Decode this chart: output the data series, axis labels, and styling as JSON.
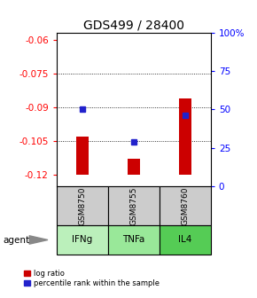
{
  "title": "GDS499 / 28400",
  "categories": [
    "IFNg",
    "TNFa",
    "IL4"
  ],
  "sample_ids": [
    "GSM8750",
    "GSM8755",
    "GSM8760"
  ],
  "log_ratios": [
    -0.103,
    -0.113,
    -0.086
  ],
  "percentile_ranks": [
    50.0,
    29.0,
    46.0
  ],
  "ylim_left": [
    -0.125,
    -0.057
  ],
  "ylim_right": [
    0,
    100
  ],
  "yticks_left": [
    -0.12,
    -0.105,
    -0.09,
    -0.075,
    -0.06
  ],
  "ytick_labels_left": [
    "-0.12",
    "-0.105",
    "-0.09",
    "-0.075",
    "-0.06"
  ],
  "yticks_right": [
    0,
    25,
    50,
    75,
    100
  ],
  "ytick_labels_right": [
    "0",
    "25",
    "50",
    "75",
    "100%"
  ],
  "bar_bottom": -0.12,
  "bar_color": "#cc0000",
  "dot_color": "#2222cc",
  "agent_label": "agent",
  "legend_bar_label": "log ratio",
  "legend_dot_label": "percentile rank within the sample",
  "gsm_bg_color": "#cccccc",
  "agent_colors": [
    "#bbf0bb",
    "#99e899",
    "#55cc55"
  ],
  "title_fontsize": 10,
  "tick_fontsize": 7.5,
  "bar_width": 0.25,
  "dot_size": 5
}
